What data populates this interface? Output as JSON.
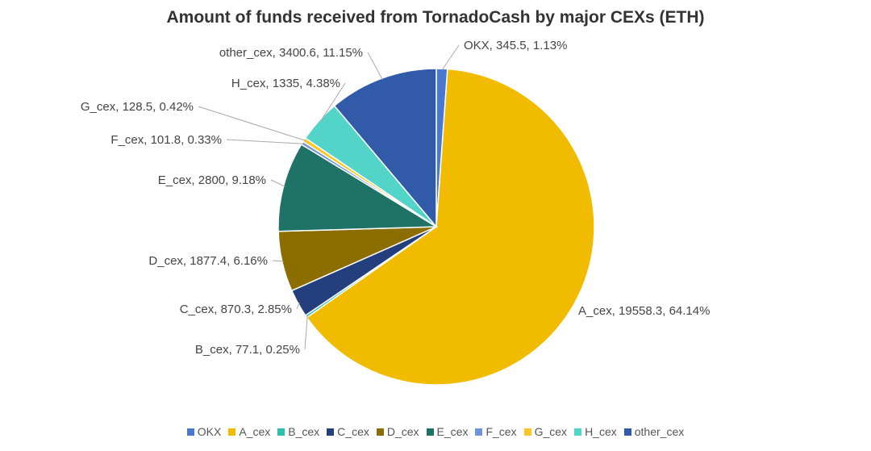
{
  "chart_data": {
    "type": "pie",
    "title": "Amount of funds received from TornadoCash by major CEXs (ETH)",
    "start_angle": "12 o'clock, clockwise",
    "legend_position": "bottom",
    "slices": [
      {
        "name": "OKX",
        "value": 345.5,
        "percent": "1.13%",
        "color": "#4a78cf",
        "label": "OKX, 345.5, 1.13%"
      },
      {
        "name": "A_cex",
        "value": 19558.3,
        "percent": "64.14%",
        "color": "#f1bb00",
        "label": "A_cex, 19558.3, 64.14%"
      },
      {
        "name": "B_cex",
        "value": 77.1,
        "percent": "0.25%",
        "color": "#2ebfaf",
        "label": "B_cex, 77.1, 0.25%"
      },
      {
        "name": "C_cex",
        "value": 870.3,
        "percent": "2.85%",
        "color": "#233f7e",
        "label": "C_cex, 870.3, 2.85%"
      },
      {
        "name": "D_cex",
        "value": 1877.4,
        "percent": "6.16%",
        "color": "#8b6d00",
        "label": "D_cex, 1877.4, 6.16%"
      },
      {
        "name": "E_cex",
        "value": 2800,
        "percent": "9.18%",
        "color": "#1e7266",
        "label": "E_cex, 2800, 9.18%"
      },
      {
        "name": "F_cex",
        "value": 101.8,
        "percent": "0.33%",
        "color": "#6f94dc",
        "label": "F_cex, 101.8, 0.33%"
      },
      {
        "name": "G_cex",
        "value": 128.5,
        "percent": "0.42%",
        "color": "#f9c624",
        "label": "G_cex, 128.5, 0.42%"
      },
      {
        "name": "H_cex",
        "value": 1335,
        "percent": "4.38%",
        "color": "#52d4c8",
        "label": "H_cex, 1335, 4.38%"
      },
      {
        "name": "other_cex",
        "value": 3400.6,
        "percent": "11.15%",
        "color": "#315aa9",
        "label": "other_cex, 3400.6, 11.15%"
      }
    ]
  }
}
